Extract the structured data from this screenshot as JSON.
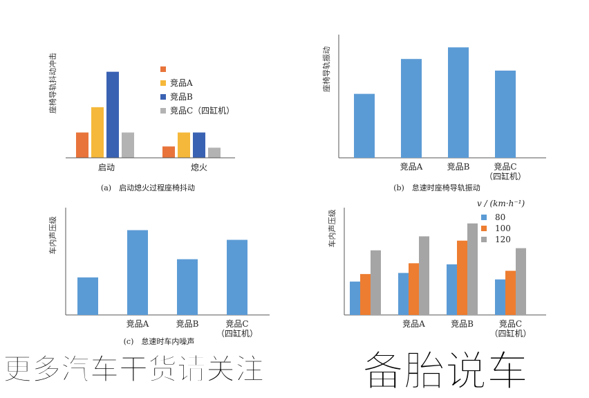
{
  "colors": {
    "c1": "#e8743b",
    "c2": "#f5b83a",
    "c3": "#3a62b3",
    "c4": "#b3b3b3",
    "blue": "#5b9bd5",
    "orange": "#ed7d31",
    "gray": "#a5a5a5",
    "axis": "#555555"
  },
  "chart_data": [
    {
      "type": "bar",
      "title": "(a)　启动熄火过程座椅抖动",
      "ylabel": "座椅导轨抖动冲击",
      "categories": [
        "启动",
        "熄火"
      ],
      "series": [
        {
          "name": "",
          "values": [
            2.0,
            0.9
          ]
        },
        {
          "name": "竞品A",
          "values": [
            4.0,
            2.0
          ]
        },
        {
          "name": "竞品B",
          "values": [
            6.8,
            2.0
          ]
        },
        {
          "name": "竞品C（四缸机）",
          "values": [
            2.0,
            0.8
          ]
        }
      ],
      "ylim": [
        0,
        7
      ]
    },
    {
      "type": "bar",
      "title": "(b)　怠速时座椅导轨振动",
      "ylabel": "座椅导轨振动",
      "categories": [
        "",
        "竞品A",
        "竞品B",
        "竞品C（四缸机）"
      ],
      "values": [
        4.4,
        6.8,
        7.6,
        6.0
      ],
      "ylim": [
        0,
        8
      ]
    },
    {
      "type": "bar",
      "title": "(c)　怠速时车内噪声",
      "ylabel": "车内声压级",
      "categories": [
        "",
        "竞品A",
        "竞品B",
        "竞品C（四缸机）"
      ],
      "values": [
        3.1,
        7.0,
        4.6,
        6.2
      ],
      "ylim": [
        0,
        8
      ]
    },
    {
      "type": "bar",
      "title": "",
      "ylabel": "车内声压级",
      "legend_title": "v / (km·h⁻¹)",
      "categories": [
        "",
        "竞品A",
        "竞品B",
        "竞品C（四缸机）"
      ],
      "series": [
        {
          "name": "80",
          "values": [
            3.1,
            3.9,
            4.7,
            3.3
          ]
        },
        {
          "name": "100",
          "values": [
            3.8,
            4.8,
            6.9,
            4.1
          ]
        },
        {
          "name": "120",
          "values": [
            6.0,
            7.3,
            8.5,
            6.2
          ]
        }
      ],
      "ylim": [
        0,
        9
      ]
    }
  ],
  "banner": {
    "left": "更多汽车干货请关注",
    "right": "备胎说车"
  }
}
